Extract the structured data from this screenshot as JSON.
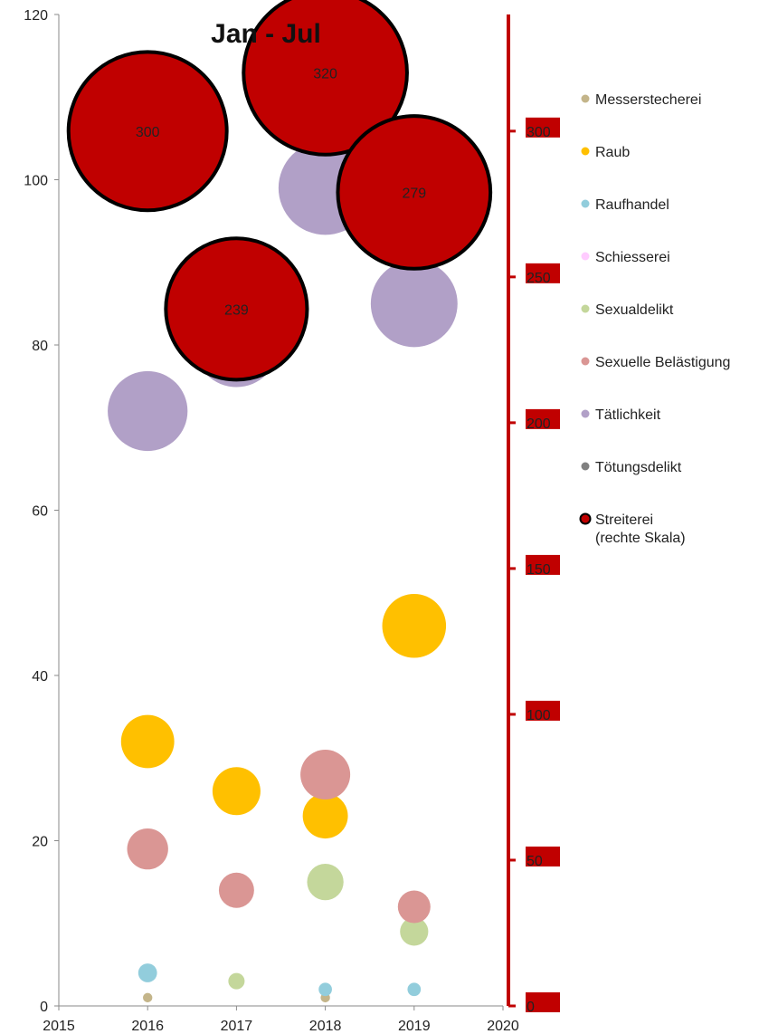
{
  "chart_data": {
    "type": "scatter",
    "subtype": "bubble",
    "title": "Jan - Jul",
    "xlim": [
      2015,
      2020
    ],
    "x_ticks": [
      "2015",
      "2016",
      "2017",
      "2018",
      "2019",
      "2020"
    ],
    "ylim": [
      0,
      120
    ],
    "y_ticks": [
      "0",
      "20",
      "40",
      "60",
      "80",
      "100",
      "120"
    ],
    "y2lim": [
      0,
      340
    ],
    "y2_ticks": [
      "0",
      "50",
      "100",
      "150",
      "200",
      "250",
      "300"
    ],
    "y2_color": "#c00000",
    "legend_position": "right",
    "grid": false,
    "series": [
      {
        "name": "Messerstecherei",
        "color": "#c4b58a",
        "axis": "left",
        "points": [
          {
            "x": 2016,
            "y": 1,
            "size": 1
          },
          {
            "x": 2018,
            "y": 1,
            "size": 1
          }
        ]
      },
      {
        "name": "Raub",
        "color": "#ffc000",
        "axis": "left",
        "points": [
          {
            "x": 2016,
            "y": 32,
            "size": 32
          },
          {
            "x": 2017,
            "y": 26,
            "size": 26
          },
          {
            "x": 2018,
            "y": 23,
            "size": 23
          },
          {
            "x": 2019,
            "y": 46,
            "size": 46
          }
        ]
      },
      {
        "name": "Raufhandel",
        "color": "#92cddc",
        "axis": "left",
        "points": [
          {
            "x": 2016,
            "y": 4,
            "size": 4
          },
          {
            "x": 2018,
            "y": 2,
            "size": 2
          },
          {
            "x": 2019,
            "y": 2,
            "size": 2
          }
        ]
      },
      {
        "name": "Schiesserei",
        "color": "#ffccff",
        "axis": "left",
        "points": []
      },
      {
        "name": "Sexualdelikt",
        "color": "#c4d79b",
        "axis": "left",
        "points": [
          {
            "x": 2017,
            "y": 3,
            "size": 3
          },
          {
            "x": 2018,
            "y": 15,
            "size": 15
          },
          {
            "x": 2019,
            "y": 9,
            "size": 9
          }
        ]
      },
      {
        "name": "Sexuelle Belästigung",
        "color": "#da9694",
        "axis": "left",
        "points": [
          {
            "x": 2016,
            "y": 19,
            "size": 19
          },
          {
            "x": 2017,
            "y": 14,
            "size": 14
          },
          {
            "x": 2018,
            "y": 28,
            "size": 28
          },
          {
            "x": 2019,
            "y": 12,
            "size": 12
          }
        ]
      },
      {
        "name": "Tätlichkeit",
        "color": "#b1a0c7",
        "axis": "left",
        "points": [
          {
            "x": 2016,
            "y": 72,
            "size": 72
          },
          {
            "x": 2017,
            "y": 80,
            "size": 80
          },
          {
            "x": 2018,
            "y": 99,
            "size": 99
          },
          {
            "x": 2019,
            "y": 85,
            "size": 85
          }
        ]
      },
      {
        "name": "Tötungsdelikt",
        "color": "#808080",
        "axis": "left",
        "points": []
      },
      {
        "name": "Streiterei\n(rechte Skala)",
        "color": "#c00000",
        "axis": "right",
        "outline": "#000000",
        "points": [
          {
            "x": 2016,
            "y": 300,
            "size": 300,
            "label": "300"
          },
          {
            "x": 2017,
            "y": 239,
            "size": 239,
            "label": "239"
          },
          {
            "x": 2018,
            "y": 320,
            "size": 320,
            "label": "320"
          },
          {
            "x": 2019,
            "y": 279,
            "size": 279,
            "label": "279"
          }
        ]
      }
    ]
  }
}
